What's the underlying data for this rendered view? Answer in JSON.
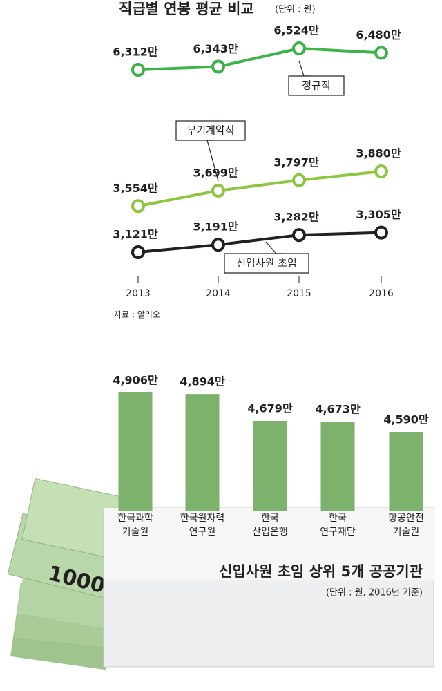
{
  "chart_data": [
    {
      "type": "line",
      "title": "직급별 연봉 평균 비교",
      "subtitle": "(단위 : 원)",
      "source": "자료 : 알리오",
      "categories": [
        "2013",
        "2014",
        "2015",
        "2016"
      ],
      "series": [
        {
          "name": "정규직",
          "color": "#3cb44a",
          "values": [
            6312,
            6343,
            6524,
            6480
          ],
          "value_labels": [
            "6,312만",
            "6,343만",
            "6,524만",
            "6,480만"
          ]
        },
        {
          "name": "무기계약직",
          "color": "#8dc63f",
          "values": [
            3554,
            3699,
            3797,
            3880
          ],
          "value_labels": [
            "3,554만",
            "3,699만",
            "3,797만",
            "3,880만"
          ]
        },
        {
          "name": "신입사원 초임",
          "color": "#231f20",
          "values": [
            3121,
            3191,
            3282,
            3305
          ],
          "value_labels": [
            "3,121만",
            "3,191만",
            "3,282만",
            "3,305만"
          ]
        }
      ]
    },
    {
      "type": "bar",
      "title": "신입사원 초임 상위 5개 공공기관",
      "subtitle": "(단위 : 원, 2016년 기준)",
      "categories": [
        "한국과학\n기술원",
        "한국원자력\n연구원",
        "한국\n산업은행",
        "한국\n연구재단",
        "항공안전\n기술원"
      ],
      "values": [
        4906,
        4894,
        4679,
        4673,
        4590
      ],
      "value_labels": [
        "4,906만",
        "4,894만",
        "4,679만",
        "4,673만",
        "4,590만"
      ],
      "color": "#7cb26b"
    }
  ]
}
